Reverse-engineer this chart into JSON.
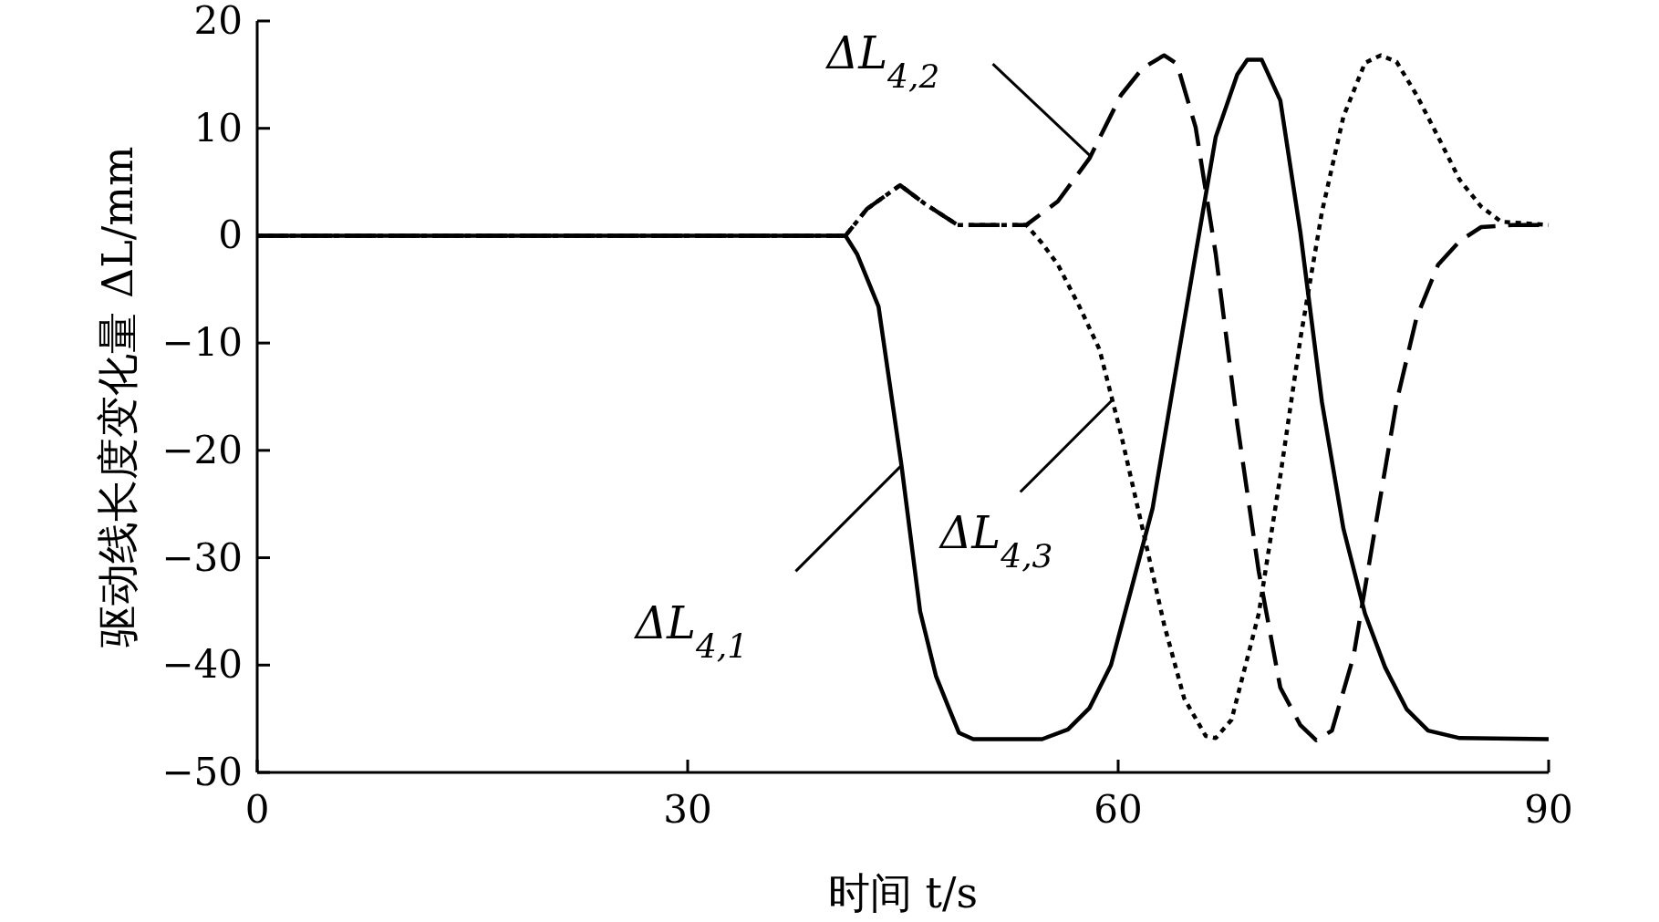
{
  "chart_data": {
    "type": "line",
    "xlabel": "时间 t/s",
    "ylabel": "驱动线长度变化量 ΔL/mm",
    "xlim": [
      0,
      90
    ],
    "xticks": [
      0,
      30,
      60,
      90
    ],
    "ylim": [
      -50,
      20
    ],
    "yticks": [
      20,
      10,
      0,
      {
        "value": -10,
        "label": "−10"
      },
      {
        "value": -20,
        "label": "−20"
      },
      {
        "value": -30,
        "label": "−30"
      },
      {
        "value": -40,
        "label": "−40"
      },
      {
        "value": -50,
        "label": "−50"
      }
    ],
    "grid": false,
    "marker": "none",
    "series": [
      {
        "color": "#000000",
        "line_style": "solid",
        "x": [
          0,
          41.0,
          41.8,
          43.3,
          44.9,
          46.2,
          47.3,
          48.2,
          48.9,
          49.9,
          54.7,
          56.5,
          58.0,
          59.5,
          60.9,
          62.4,
          63.9,
          65.4,
          66.8,
          68.3,
          69.0,
          70.0,
          71.3,
          72.7,
          74.2,
          75.7,
          77.2,
          78.6,
          80.1,
          81.6,
          83.8,
          90
        ],
        "values": [
          0,
          0,
          -1.7,
          -6.6,
          -21.4,
          -35,
          -41,
          -44,
          -46.3,
          -46.9,
          -46.9,
          -46,
          -44,
          -40,
          -33,
          -25.4,
          -13.5,
          -1.7,
          9.2,
          15,
          16.4,
          16.4,
          12.6,
          0.3,
          -15.5,
          -27.3,
          -35.2,
          -40.2,
          -44.1,
          -46.1,
          -46.8,
          -46.9
        ]
      },
      {
        "color": "#000000",
        "line_style": "dashed",
        "x": [
          0,
          41.0,
          42.5,
          44.8,
          46.5,
          48.8,
          53.6,
          55.8,
          58.0,
          60.2,
          61.7,
          63.2,
          64.1,
          65.4,
          66.8,
          68.3,
          69.8,
          71.3,
          72.7,
          73.8,
          74.9,
          76.4,
          77.9,
          79.4,
          80.8,
          82.3,
          83.8,
          85.3,
          87.5,
          90
        ],
        "values": [
          0,
          0,
          2.5,
          4.7,
          3.0,
          1.0,
          1.0,
          3.2,
          7.2,
          13.1,
          15.6,
          16.8,
          16.0,
          10.1,
          -1.7,
          -17.5,
          -31.3,
          -42.1,
          -45.6,
          -47,
          -46.1,
          -39.2,
          -27.3,
          -15.5,
          -7.6,
          -2.7,
          -0.5,
          0.8,
          1.0,
          1.0
        ]
      },
      {
        "color": "#000000",
        "line_style": "dotted",
        "x": [
          0,
          41.0,
          42.5,
          44.8,
          46.5,
          48.8,
          53.6,
          54.7,
          55.8,
          57.3,
          58.7,
          60.2,
          61.7,
          63.2,
          64.6,
          66.1,
          66.8,
          67.9,
          69.8,
          71.3,
          72.7,
          74.2,
          75.7,
          77.2,
          78.3,
          79.4,
          80.8,
          82.3,
          83.8,
          85.3,
          86.7,
          90
        ],
        "values": [
          0,
          0,
          2.5,
          4.7,
          3.0,
          1.0,
          1.0,
          -0.7,
          -2.7,
          -6.6,
          -10.6,
          -18.5,
          -27.3,
          -36.2,
          -43.1,
          -46.6,
          -46.8,
          -45.1,
          -35.2,
          -22.4,
          -9.6,
          2.2,
          11.1,
          16.1,
          16.8,
          16.2,
          13.1,
          9.2,
          5.2,
          2.7,
          1.3,
          1.0
        ]
      }
    ],
    "annotations": [
      {
        "text": "ΔL$_{4,1}$",
        "x": 44.9,
        "y": -21.4
      },
      {
        "text": "ΔL$_{4,2}$",
        "x": 58.0,
        "y": 7.5
      },
      {
        "text": "ΔL$_{4,3}$",
        "x": 59.6,
        "y": -15.3
      }
    ]
  }
}
